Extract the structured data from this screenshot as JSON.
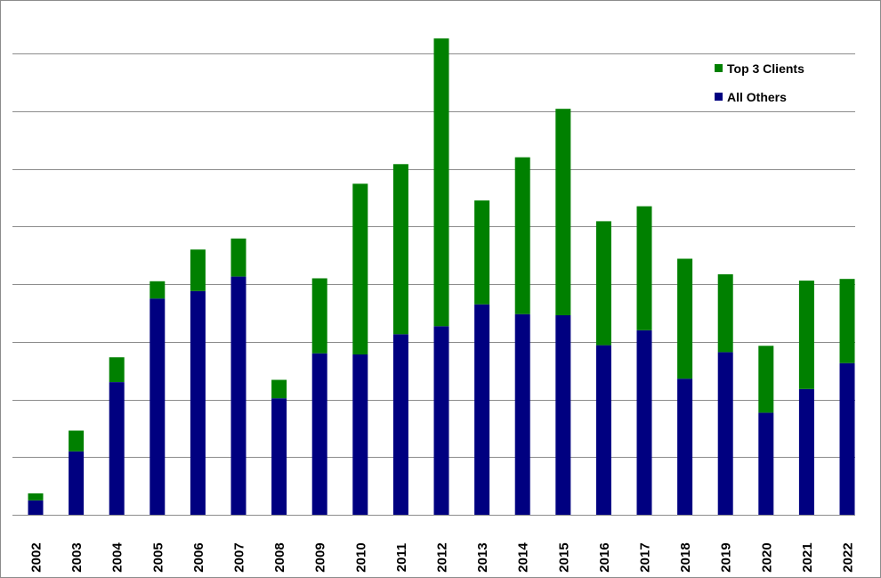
{
  "chart_data": {
    "type": "bar",
    "stacked": true,
    "categories": [
      "2002",
      "2003",
      "2004",
      "2005",
      "2006",
      "2007",
      "2008",
      "2009",
      "2010",
      "2011",
      "2012",
      "2013",
      "2014",
      "2015",
      "2016",
      "2017",
      "2018",
      "2019",
      "2020",
      "2021",
      "2022"
    ],
    "series": [
      {
        "name": "All Others",
        "color": "#000080",
        "values": [
          0.25,
          1.1,
          2.3,
          3.75,
          3.88,
          4.13,
          2.02,
          2.8,
          2.78,
          3.13,
          3.27,
          3.65,
          3.48,
          3.46,
          2.94,
          3.2,
          2.36,
          2.82,
          1.77,
          2.18,
          2.63
        ]
      },
      {
        "name": "Top 3 Clients",
        "color": "#008000",
        "values": [
          0.12,
          0.36,
          0.43,
          0.3,
          0.72,
          0.66,
          0.32,
          1.3,
          2.96,
          2.95,
          4.99,
          1.8,
          2.72,
          3.58,
          2.15,
          2.15,
          2.08,
          1.35,
          1.16,
          1.88,
          1.46
        ]
      }
    ],
    "ylim": [
      0,
      8
    ],
    "ytick_step": 1,
    "y_tick_labels_shown": false,
    "grid": true,
    "legend_position": "top-right",
    "title": "",
    "xlabel": "",
    "ylabel": ""
  }
}
